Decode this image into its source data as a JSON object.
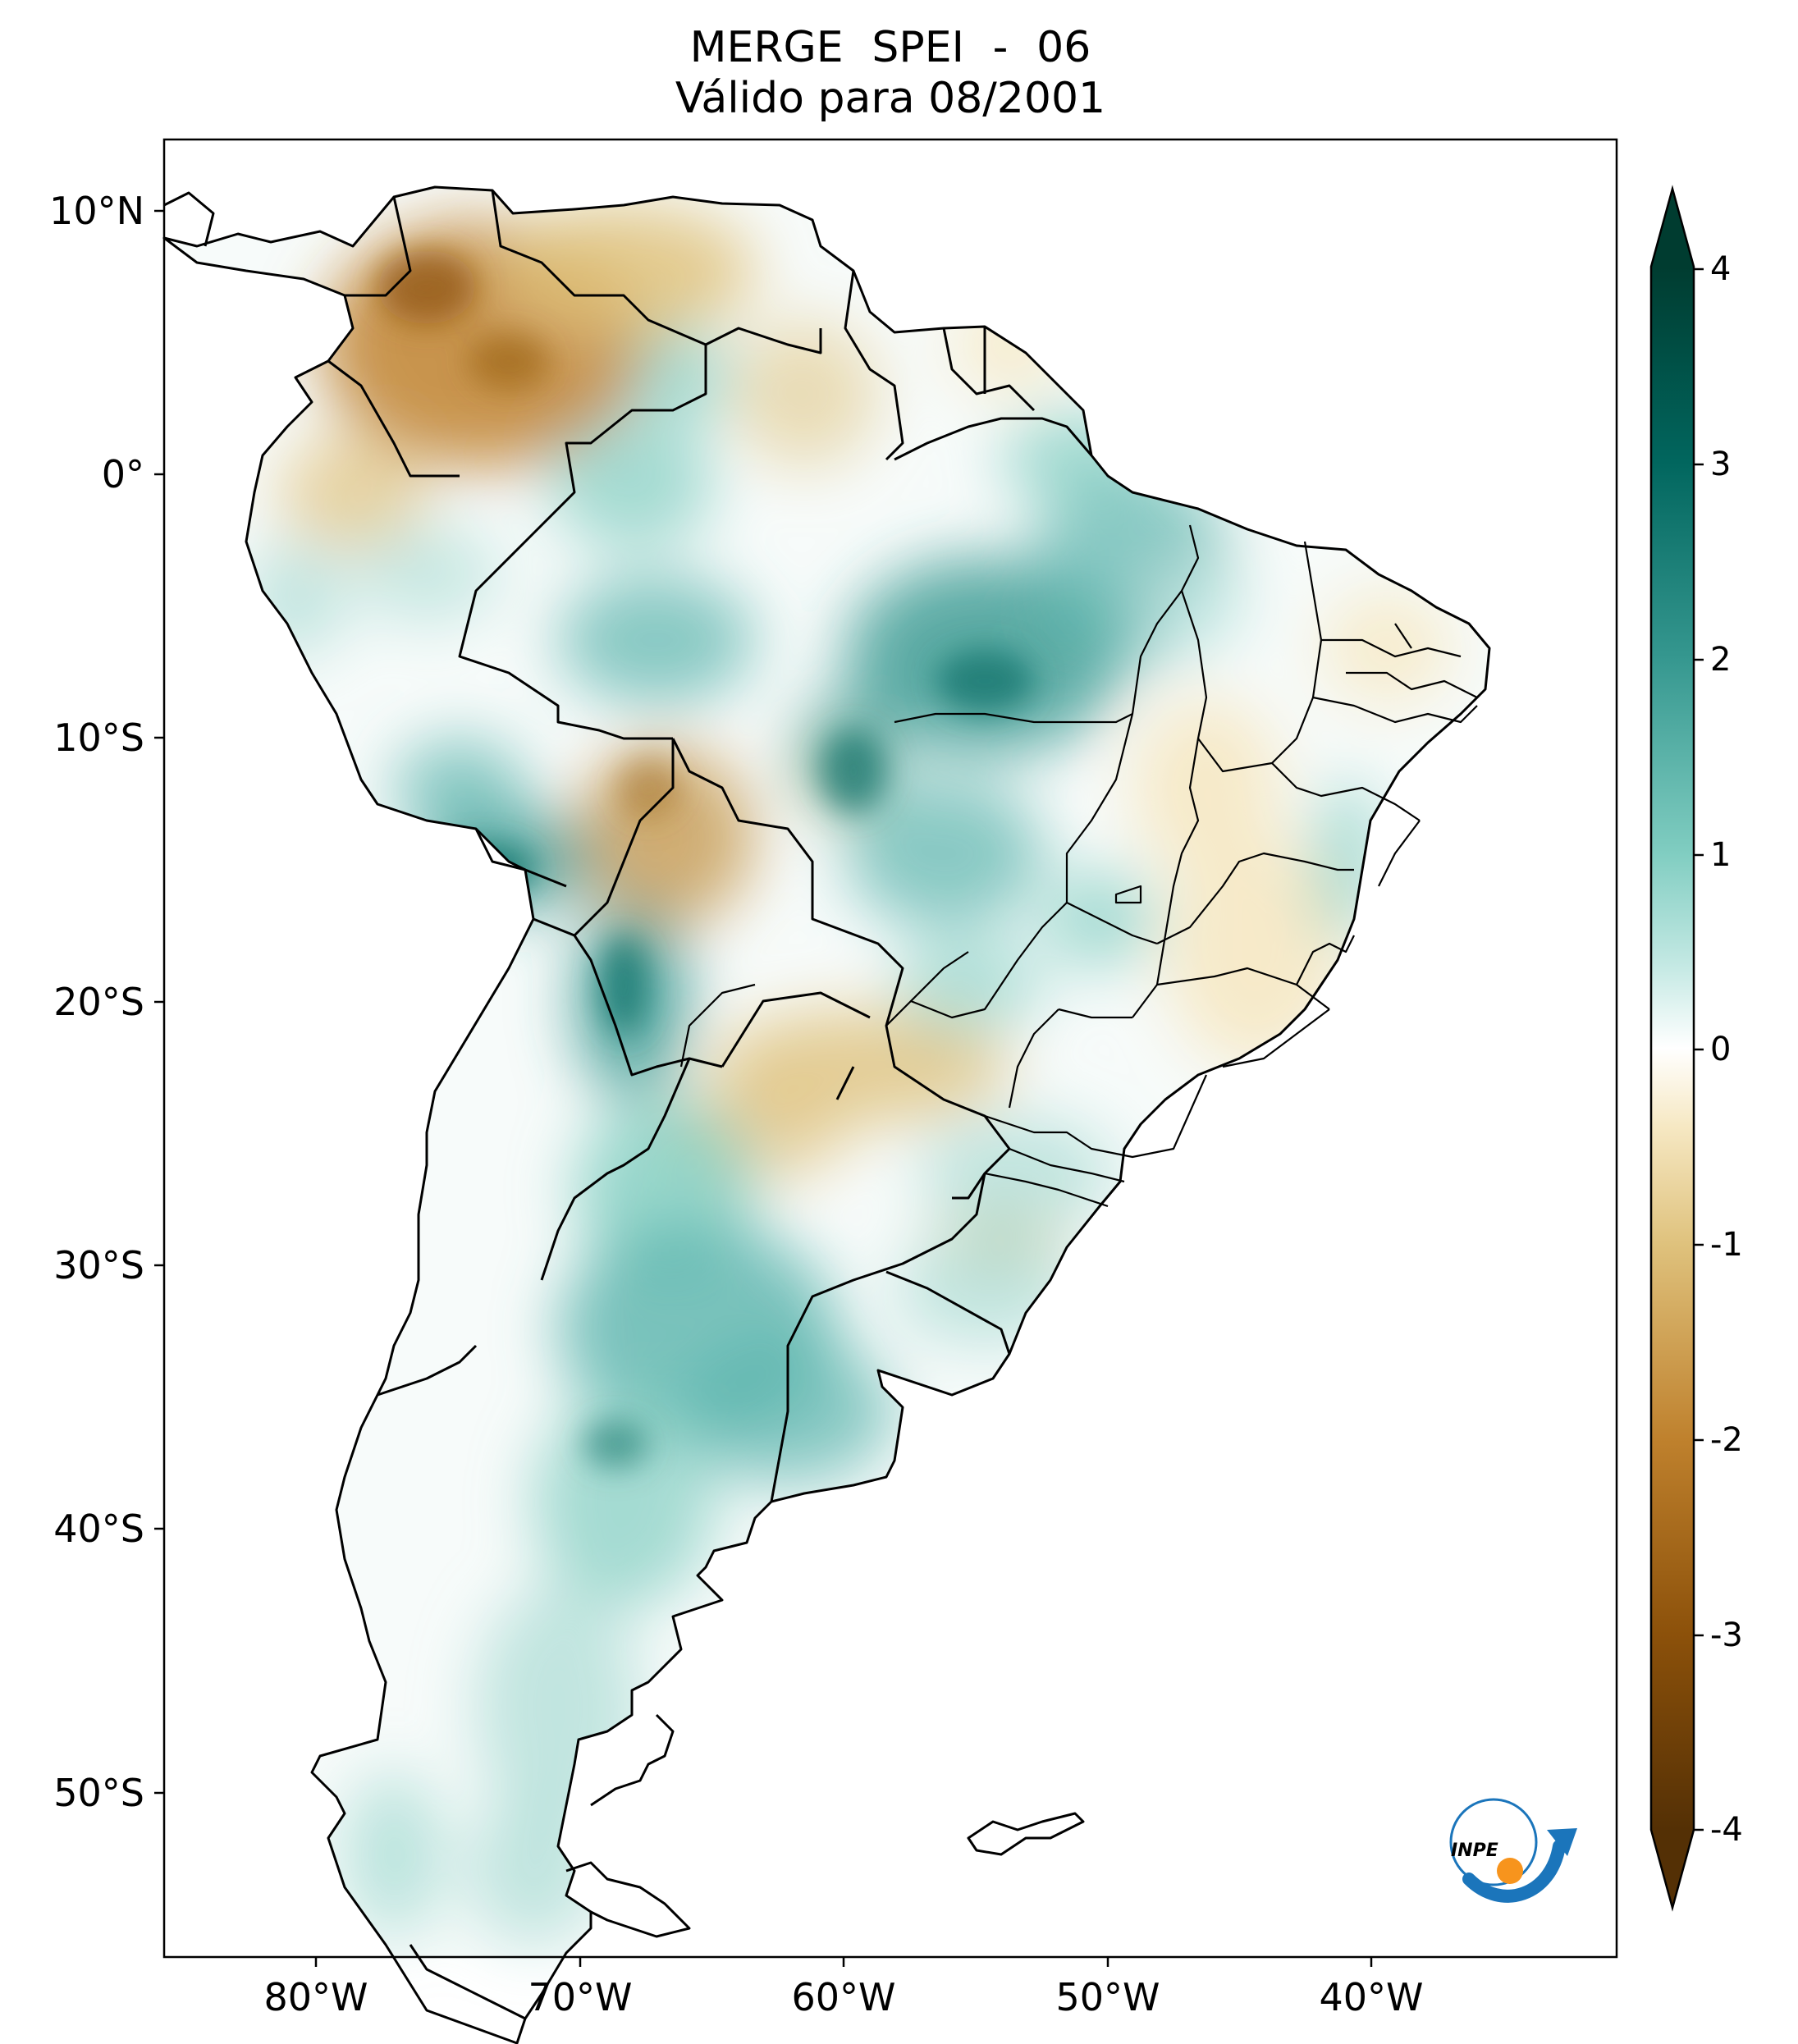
{
  "title": {
    "line1": "MERGE   SPEI - 06",
    "line2": "Válido para 08/2001"
  },
  "map": {
    "lat_ticks": [
      "10°N",
      "0°",
      "10°S",
      "20°S",
      "30°S",
      "40°S",
      "50°S"
    ],
    "lon_ticks": [
      "80°W",
      "70°W",
      "60°W",
      "50°W",
      "40°W"
    ]
  },
  "colorbar": {
    "ticks": [
      "4",
      "3",
      "2",
      "1",
      "0",
      "-1",
      "-2",
      "-3",
      "-4"
    ],
    "range": [
      -4,
      4
    ],
    "extend": "both",
    "colors": [
      "#543005",
      "#8c510a",
      "#bf812d",
      "#dfc27d",
      "#f6e8c3",
      "#ffffff",
      "#c7eae5",
      "#80cdc1",
      "#35978f",
      "#01665e",
      "#003c30"
    ]
  },
  "logo": {
    "text": "INPE"
  }
}
